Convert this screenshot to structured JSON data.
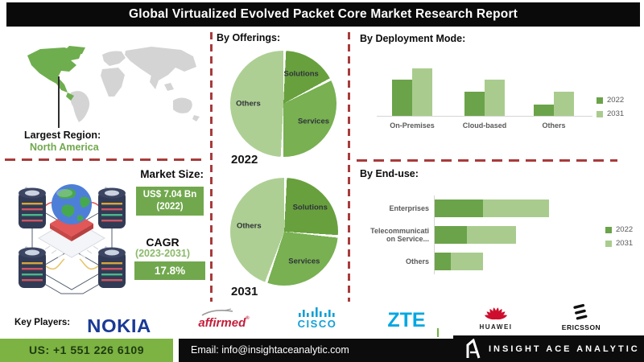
{
  "title": "Global Virtualized Evolved Packet Core Market Research Report",
  "region": {
    "label": "Largest Region:",
    "value": "North America"
  },
  "market_size": {
    "label": "Market Size:",
    "value": "US$ 7.04 Bn",
    "year": "(2022)"
  },
  "cagr": {
    "label": "CAGR",
    "period": "(2023-2031)",
    "value": "17.8%"
  },
  "offerings": {
    "title": "By Offerings:",
    "year_labels": [
      "2022",
      "2031"
    ]
  },
  "deployment": {
    "title": "By Deployment Mode:"
  },
  "enduse": {
    "title": "By End-use:"
  },
  "key_players": {
    "label": "Key Players:",
    "nokia": "NOKIA",
    "affirmed": "affirmed",
    "affirmed_reg": "®",
    "cisco": "CISCO",
    "zte": "ZTE",
    "huawei": "HUAWEI",
    "ericsson": "ERICSSON"
  },
  "footer": {
    "phone": "US: +1 551 226 6109",
    "email": "Email: info@insightaceanalytic.com",
    "brand": "INSIGHT ACE ANALYTIC"
  },
  "colors": {
    "dash_red": "#a93b3b",
    "box_green": "#71a84e",
    "footer_green": "#7cb342",
    "map_region_green": "#6fae4e",
    "map_gray": "#d4d4d4",
    "series_2022": "#6ba34a",
    "series_2031": "#a9cc8e"
  },
  "chart_data": [
    {
      "id": "offerings-2022",
      "type": "pie",
      "title": "By Offerings: 2022",
      "labels": [
        "Solutions",
        "Services",
        "Others"
      ],
      "values": [
        17,
        33,
        50
      ],
      "unit": "percent (estimated, no data labels shown)",
      "colors": [
        "#68a03e",
        "#78b052",
        "#aecf94"
      ]
    },
    {
      "id": "offerings-2031",
      "type": "pie",
      "title": "By Offerings: 2031",
      "labels": [
        "Solutions",
        "Services",
        "Others"
      ],
      "values": [
        26,
        29,
        45
      ],
      "unit": "percent (estimated, no data labels shown)",
      "colors": [
        "#68a03e",
        "#78b052",
        "#aecf94"
      ]
    },
    {
      "id": "deployment",
      "type": "bar",
      "title": "By Deployment Mode:",
      "categories": [
        "On-Premises",
        "Cloud-based",
        "Others"
      ],
      "series": [
        {
          "name": "2022",
          "color": "#6ba34a",
          "values": [
            47,
            31,
            15
          ]
        },
        {
          "name": "2031",
          "color": "#a9cc8e",
          "values": [
            62,
            47,
            31
          ]
        }
      ],
      "ylim": [
        0,
        70
      ],
      "unit": "relative height (axis unlabeled)",
      "legend_position": "right",
      "grid": false
    },
    {
      "id": "enduse",
      "type": "bar-horizontal-stacked",
      "title": "By End-use:",
      "categories": [
        "Enterprises",
        "Telecommunicati\non Service...",
        "Others"
      ],
      "series": [
        {
          "name": "2022",
          "color": "#6ba34a",
          "values": [
            60,
            40,
            20
          ]
        },
        {
          "name": "2031",
          "color": "#a9cc8e",
          "values": [
            82,
            61,
            40
          ]
        }
      ],
      "xlim": [
        0,
        142
      ],
      "unit": "relative length (axis unlabeled)",
      "legend_position": "right",
      "grid": false
    }
  ]
}
